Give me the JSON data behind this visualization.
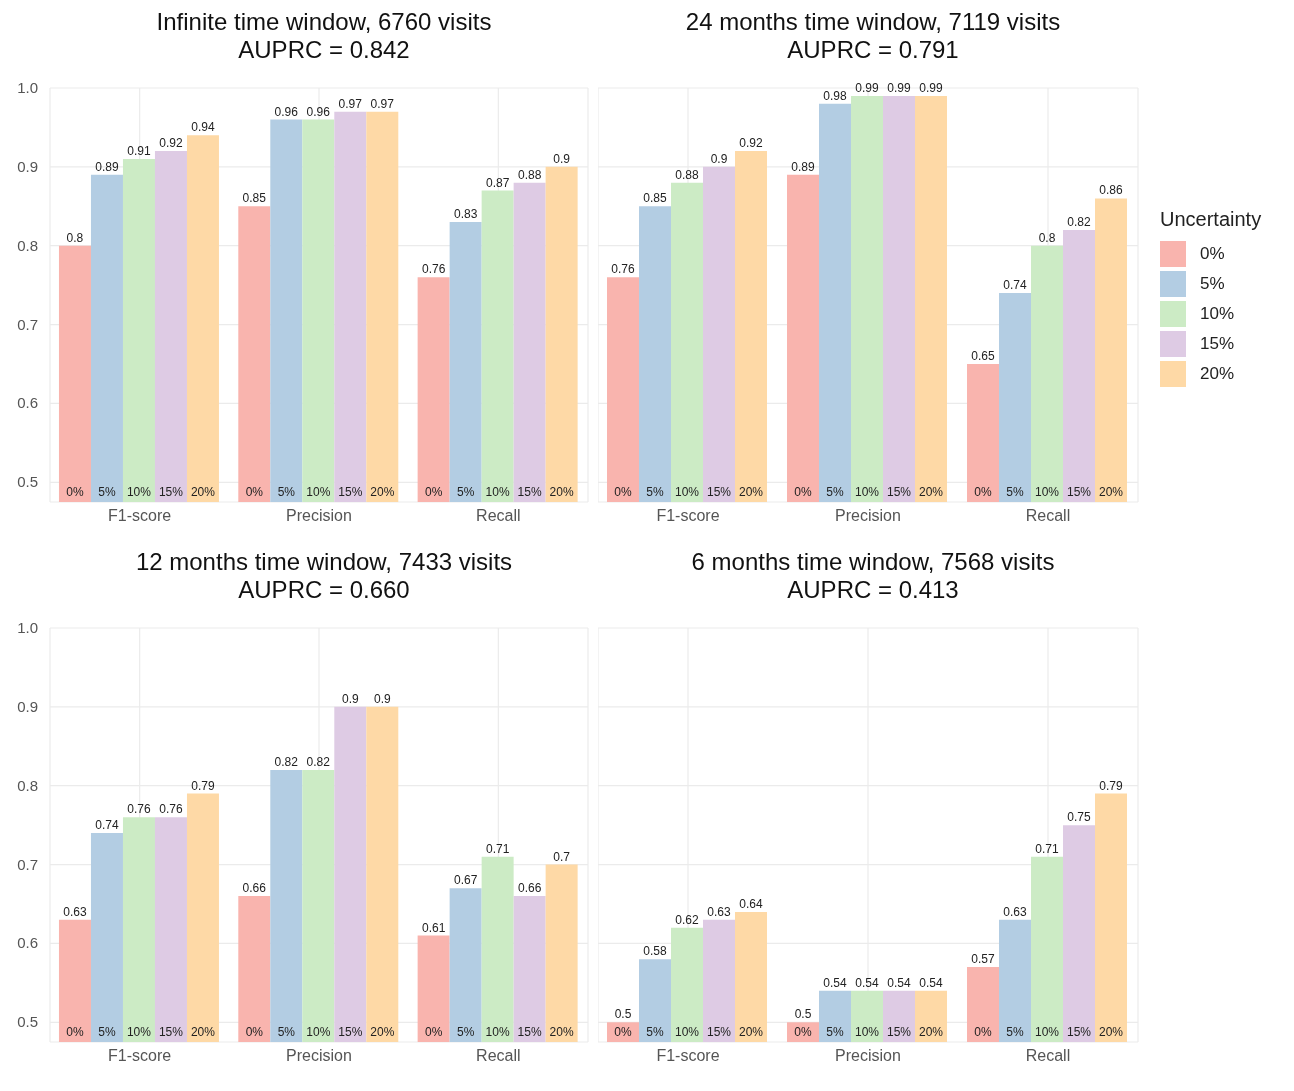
{
  "chart_data": [
    {
      "type": "bar",
      "title": "Infinite time window, 6760 visits\nAUPRC = 0.842",
      "categories": [
        "F1-score",
        "Precision",
        "Recall"
      ],
      "series": [
        {
          "name": "0%",
          "color": "#f9b4ae",
          "values": [
            0.8,
            0.85,
            0.76
          ]
        },
        {
          "name": "5%",
          "color": "#b3cde3",
          "values": [
            0.89,
            0.96,
            0.83
          ]
        },
        {
          "name": "10%",
          "color": "#ccebc5",
          "values": [
            0.91,
            0.96,
            0.87
          ]
        },
        {
          "name": "15%",
          "color": "#decbe4",
          "values": [
            0.92,
            0.97,
            0.88
          ]
        },
        {
          "name": "20%",
          "color": "#fed9a6",
          "values": [
            0.94,
            0.97,
            0.9
          ]
        }
      ],
      "ylim": [
        0.475,
        1.0
      ],
      "yticks": [
        0.5,
        0.6,
        0.7,
        0.8,
        0.9,
        {
          "value": 1,
          "label": "1.0"
        }
      ],
      "grid": true,
      "data_labels": true
    },
    {
      "type": "bar",
      "title": "24 months time window, 7119 visits\nAUPRC = 0.791",
      "categories": [
        "F1-score",
        "Precision",
        "Recall"
      ],
      "series": [
        {
          "name": "0%",
          "color": "#f9b4ae",
          "values": [
            0.76,
            0.89,
            0.65
          ]
        },
        {
          "name": "5%",
          "color": "#b3cde3",
          "values": [
            0.85,
            0.98,
            0.74
          ]
        },
        {
          "name": "10%",
          "color": "#ccebc5",
          "values": [
            0.88,
            0.99,
            0.8
          ]
        },
        {
          "name": "15%",
          "color": "#decbe4",
          "values": [
            0.9,
            0.99,
            0.82
          ]
        },
        {
          "name": "20%",
          "color": "#fed9a6",
          "values": [
            0.92,
            0.99,
            0.86
          ]
        }
      ],
      "ylim": [
        0.475,
        1.0
      ],
      "yticks": [
        0.5,
        0.6,
        0.7,
        0.8,
        0.9,
        1.0
      ],
      "grid": true,
      "data_labels": true,
      "tick_labels": "x",
      "legend": "right",
      "legend_title": "Uncertainty"
    },
    {
      "type": "bar",
      "title": "12 months time window, 7433 visits\nAUPRC = 0.660",
      "categories": [
        "F1-score",
        "Precision",
        "Recall"
      ],
      "series": [
        {
          "name": "0%",
          "color": "#f9b4ae",
          "values": [
            0.63,
            0.66,
            0.61
          ]
        },
        {
          "name": "5%",
          "color": "#b3cde3",
          "values": [
            0.74,
            0.82,
            0.67
          ]
        },
        {
          "name": "10%",
          "color": "#ccebc5",
          "values": [
            0.76,
            0.82,
            0.71
          ]
        },
        {
          "name": "15%",
          "color": "#decbe4",
          "values": [
            0.76,
            0.9,
            0.66
          ]
        },
        {
          "name": "20%",
          "color": "#fed9a6",
          "values": [
            0.79,
            0.9,
            0.7
          ]
        }
      ],
      "ylim": [
        0.475,
        1.0
      ],
      "yticks": [
        0.5,
        0.6,
        0.7,
        0.8,
        0.9,
        {
          "value": 1,
          "label": "1.0"
        }
      ],
      "grid": true,
      "data_labels": true
    },
    {
      "type": "bar",
      "title": "6 months time window, 7568 visits\nAUPRC = 0.413",
      "categories": [
        "F1-score",
        "Precision",
        "Recall"
      ],
      "series": [
        {
          "name": "0%",
          "color": "#f9b4ae",
          "values": [
            0.5,
            0.5,
            0.57
          ]
        },
        {
          "name": "5%",
          "color": "#b3cde3",
          "values": [
            0.58,
            0.54,
            0.63
          ]
        },
        {
          "name": "10%",
          "color": "#ccebc5",
          "values": [
            0.62,
            0.54,
            0.71
          ]
        },
        {
          "name": "15%",
          "color": "#decbe4",
          "values": [
            0.63,
            0.54,
            0.75
          ]
        },
        {
          "name": "20%",
          "color": "#fed9a6",
          "values": [
            0.64,
            0.54,
            0.79
          ]
        }
      ],
      "ylim": [
        0.475,
        1.0
      ],
      "yticks": [
        0.5,
        0.6,
        0.7,
        0.8,
        0.9,
        1.0
      ],
      "grid": true,
      "data_labels": true,
      "tick_labels": "x"
    }
  ]
}
